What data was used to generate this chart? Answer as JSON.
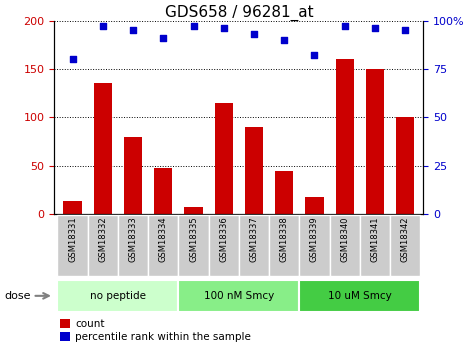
{
  "title": "GDS658 / 96281_at",
  "categories": [
    "GSM18331",
    "GSM18332",
    "GSM18333",
    "GSM18334",
    "GSM18335",
    "GSM18336",
    "GSM18337",
    "GSM18338",
    "GSM18339",
    "GSM18340",
    "GSM18341",
    "GSM18342"
  ],
  "bar_values": [
    13,
    135,
    80,
    47,
    7,
    115,
    90,
    44,
    18,
    160,
    150,
    100
  ],
  "percentile_values": [
    80,
    97,
    95,
    91,
    97,
    96,
    93,
    90,
    82,
    97,
    96,
    95
  ],
  "bar_color": "#cc0000",
  "dot_color": "#0000cc",
  "ylim_left": [
    0,
    200
  ],
  "ylim_right": [
    0,
    100
  ],
  "yticks_left": [
    0,
    50,
    100,
    150,
    200
  ],
  "ytick_labels_left": [
    "0",
    "50",
    "100",
    "150",
    "200"
  ],
  "yticks_right": [
    0,
    25,
    50,
    75,
    100
  ],
  "ytick_labels_right": [
    "0",
    "25",
    "50",
    "75",
    "100%"
  ],
  "groups": [
    {
      "label": "no peptide",
      "start": 0,
      "end": 4,
      "color": "#ccffcc"
    },
    {
      "label": "100 nM Smcy",
      "start": 4,
      "end": 8,
      "color": "#88ee88"
    },
    {
      "label": "10 uM Smcy",
      "start": 8,
      "end": 12,
      "color": "#44cc44"
    }
  ],
  "dose_label": "dose",
  "legend_count_label": "count",
  "legend_percentile_label": "percentile rank within the sample",
  "background_xticklabels": "#cccccc",
  "title_fontsize": 11,
  "tick_fontsize": 8,
  "bar_width": 0.6
}
